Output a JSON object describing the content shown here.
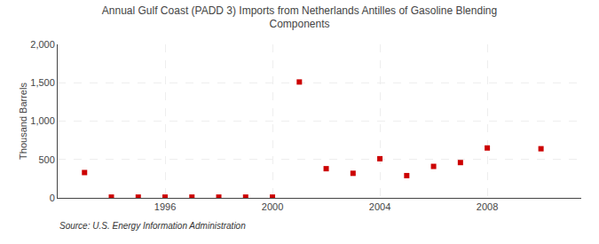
{
  "chart_data": {
    "type": "scatter",
    "title": "Annual Gulf Coast (PADD 3) Imports from Netherlands Antilles of Gasoline Blending\nComponents",
    "ylabel": "Thousand Barrels",
    "annotations": [
      "Source: U.S. Energy Information Administration"
    ],
    "x": [
      1993,
      1994,
      1995,
      1996,
      1997,
      1998,
      1999,
      2000,
      2001,
      2002,
      2003,
      2004,
      2005,
      2006,
      2007,
      2008,
      2010
    ],
    "values": [
      330,
      10,
      10,
      10,
      10,
      10,
      10,
      10,
      1510,
      380,
      320,
      510,
      290,
      410,
      460,
      650,
      640
    ],
    "color": "#cc0000",
    "marker": "square",
    "xlim": [
      1992.0,
      2011.5
    ],
    "ylim": [
      0,
      2000
    ],
    "xticks": [
      1996,
      2000,
      2004,
      2008
    ],
    "yticks": [
      0,
      500,
      {
        "value": 1000,
        "label": "1,000"
      },
      {
        "value": 1500,
        "label": "1,500"
      },
      {
        "value": 2000,
        "label": "2,000"
      }
    ],
    "grid": true
  }
}
